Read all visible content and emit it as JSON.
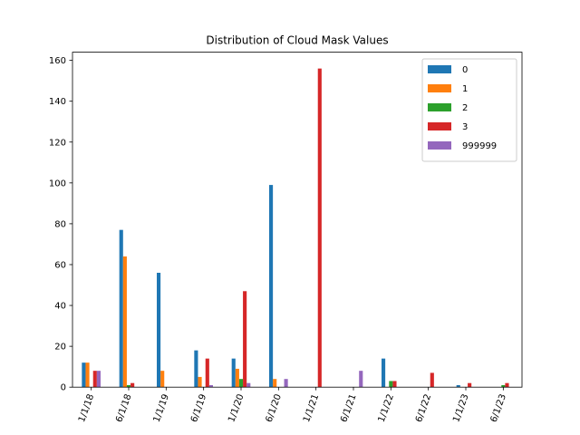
{
  "chart_data": {
    "type": "bar",
    "title": "Distribution of Cloud Mask Values",
    "xlabel": "",
    "ylabel": "",
    "categories": [
      "1/1/18",
      "6/1/18",
      "1/1/19",
      "6/1/19",
      "1/1/20",
      "6/1/20",
      "1/1/21",
      "6/1/21",
      "1/1/22",
      "6/1/22",
      "1/1/23",
      "6/1/23"
    ],
    "series": [
      {
        "name": "0",
        "color": "#1f77b4",
        "values": [
          12,
          77,
          56,
          18,
          14,
          99,
          0,
          0,
          14,
          0,
          1,
          0
        ]
      },
      {
        "name": "1",
        "color": "#ff7f0e",
        "values": [
          12,
          64,
          8,
          5,
          9,
          4,
          0,
          0,
          0,
          0,
          0,
          0
        ]
      },
      {
        "name": "2",
        "color": "#2ca02c",
        "values": [
          0,
          1,
          0,
          0,
          4,
          0,
          0,
          0,
          3,
          0,
          0,
          1
        ]
      },
      {
        "name": "3",
        "color": "#d62728",
        "values": [
          8,
          2,
          0,
          14,
          47,
          0,
          156,
          0,
          3,
          7,
          2,
          2
        ]
      },
      {
        "name": "999999",
        "color": "#9467bd",
        "values": [
          8,
          0,
          0,
          1,
          2,
          4,
          0,
          8,
          0,
          0,
          0,
          0
        ]
      }
    ],
    "ylim": [
      0,
      164
    ],
    "yticks": [
      0,
      20,
      40,
      60,
      80,
      100,
      120,
      140,
      160
    ],
    "grid": false,
    "legend_position": "top-right",
    "xtick_rotation": "70 degrees"
  }
}
